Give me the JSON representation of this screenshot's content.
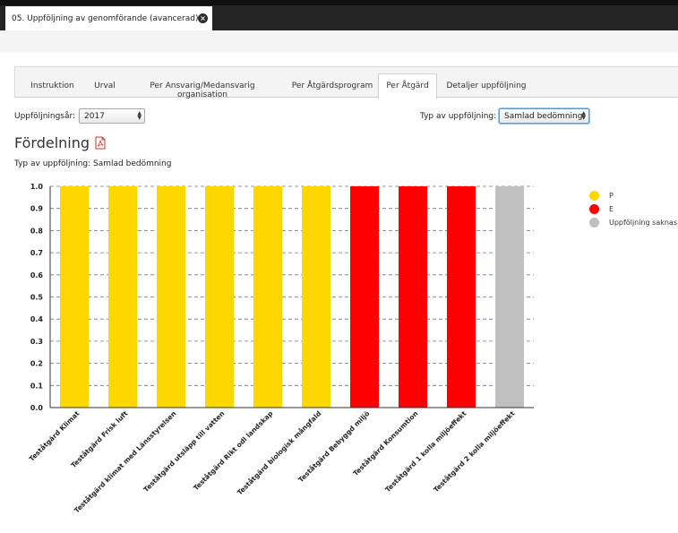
{
  "window": {
    "doc_tab_title": "05. Uppföljning av genomförande (avancerad)"
  },
  "tabs": [
    {
      "label": "Instruktion",
      "active": false
    },
    {
      "label": "Urval",
      "active": false
    },
    {
      "label": "Per Ansvarig/Medansvarig organisation",
      "active": false
    },
    {
      "label": "Per Åtgärdsprogram",
      "active": false
    },
    {
      "label": "Per Åtgärd",
      "active": true
    },
    {
      "label": "Detaljer uppföljning",
      "active": false
    }
  ],
  "filters": {
    "year_label": "Uppföljningsår:",
    "year_value": "2017",
    "type_label": "Typ av uppföljning:",
    "type_value": "Samlad bedömning"
  },
  "section": {
    "title": "Fördelning",
    "subtitle": "Typ av uppföljning: Samlad bedömning",
    "pdf_icon": "pdf-icon"
  },
  "colors": {
    "P": "#ffd700",
    "E": "#ff0000",
    "saknas": "#c0c0c0"
  },
  "chart_data": {
    "type": "bar",
    "stacked": true,
    "categories": [
      "Teståtgärd Klimat",
      "Teståtgärd Frisk luft",
      "Teståtgärd klimat med Länsstyrelsen",
      "Teståtgärd utsläpp till vatten",
      "Teståtgärd Rikt odl landskap",
      "Teståtgärd biologisk mångfald",
      "Teståtgärd Bebyggd miljö",
      "Teståtgärd Konsumtion",
      "Teståtgärd 1 kolla miljöeffekt",
      "Teståtgärd 2 kolla miljöeffekt"
    ],
    "series": [
      {
        "name": "P",
        "color": "#ffd700",
        "values": [
          1,
          1,
          1,
          1,
          1,
          1,
          0,
          0,
          0,
          0
        ]
      },
      {
        "name": "E",
        "color": "#ff0000",
        "values": [
          0,
          0,
          0,
          0,
          0,
          0,
          1,
          1,
          1,
          0
        ]
      },
      {
        "name": "Uppföljning saknas",
        "color": "#c0c0c0",
        "values": [
          0,
          0,
          0,
          0,
          0,
          0,
          0,
          0,
          0,
          1
        ]
      }
    ],
    "yticks": [
      "0.0",
      "0.1",
      "0.2",
      "0.3",
      "0.4",
      "0.5",
      "0.6",
      "0.7",
      "0.8",
      "0.9",
      "1.0"
    ],
    "ylim": [
      0,
      1
    ],
    "grid": true,
    "legend": "right"
  }
}
